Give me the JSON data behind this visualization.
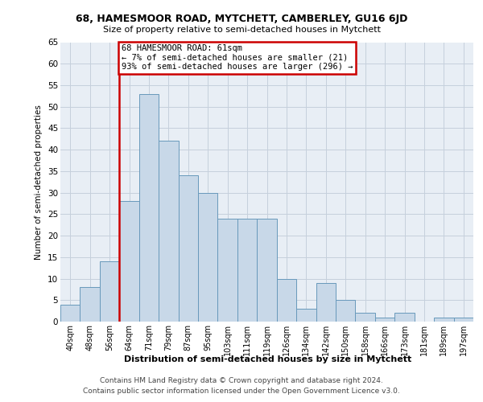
{
  "title1": "68, HAMESMOOR ROAD, MYTCHETT, CAMBERLEY, GU16 6JD",
  "title2": "Size of property relative to semi-detached houses in Mytchett",
  "xlabel": "Distribution of semi-detached houses by size in Mytchett",
  "ylabel": "Number of semi-detached properties",
  "footer1": "Contains HM Land Registry data © Crown copyright and database right 2024.",
  "footer2": "Contains public sector information licensed under the Open Government Licence v3.0.",
  "categories": [
    "40sqm",
    "48sqm",
    "56sqm",
    "64sqm",
    "71sqm",
    "79sqm",
    "87sqm",
    "95sqm",
    "103sqm",
    "111sqm",
    "119sqm",
    "126sqm",
    "134sqm",
    "142sqm",
    "150sqm",
    "158sqm",
    "166sqm",
    "173sqm",
    "181sqm",
    "189sqm",
    "197sqm"
  ],
  "values": [
    4,
    8,
    14,
    28,
    53,
    42,
    34,
    30,
    24,
    24,
    24,
    10,
    3,
    9,
    5,
    2,
    1,
    2,
    0,
    1,
    1
  ],
  "bar_color": "#c8d8e8",
  "bar_edge_color": "#6899bb",
  "vline_x_index": 2.5,
  "annotation_text1": "68 HAMESMOOR ROAD: 61sqm",
  "annotation_text2": "← 7% of semi-detached houses are smaller (21)",
  "annotation_text3": "93% of semi-detached houses are larger (296) →",
  "vline_color": "#cc0000",
  "annotation_box_edge": "#cc0000",
  "plot_bg_color": "#e8eef5",
  "ylim": [
    0,
    65
  ],
  "yticks": [
    0,
    5,
    10,
    15,
    20,
    25,
    30,
    35,
    40,
    45,
    50,
    55,
    60,
    65
  ],
  "grid_color": "#c5d0dc"
}
